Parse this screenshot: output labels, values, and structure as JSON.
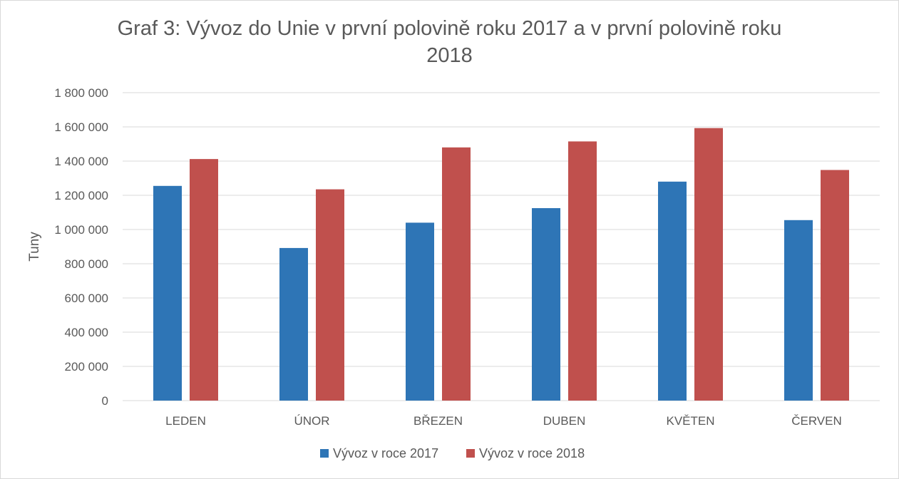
{
  "chart_data": {
    "type": "bar",
    "title": "Graf 3: Vývoz do Unie v první polovině roku 2017 a v první polovině roku 2018",
    "title_lines": [
      "Graf 3: Vývoz do Unie v první polovině roku 2017 a v první polovině roku",
      "2018"
    ],
    "ylabel": "Tuny",
    "xlabel": "",
    "categories": [
      "LEDEN",
      "ÚNOR",
      "BŘEZEN",
      "DUBEN",
      "KVĚTEN",
      "ČERVEN"
    ],
    "series": [
      {
        "name": "Vývoz v roce 2017",
        "color": "#2e75b6",
        "values": [
          1255000,
          892000,
          1040000,
          1125000,
          1280000,
          1055000
        ]
      },
      {
        "name": "Vývoz v roce 2018",
        "color": "#c0504d",
        "values": [
          1412000,
          1235000,
          1480000,
          1515000,
          1593000,
          1348000
        ]
      }
    ],
    "ylim": [
      0,
      1800000
    ],
    "yticks": [
      0,
      200000,
      400000,
      600000,
      800000,
      1000000,
      1200000,
      1400000,
      1600000,
      1800000
    ],
    "ytick_labels": [
      "0",
      "200 000",
      "400 000",
      "600 000",
      "800 000",
      "1 000 000",
      "1 200 000",
      "1 400 000",
      "1 600 000",
      "1 800 000"
    ],
    "grid": true,
    "legend_position": "bottom"
  }
}
